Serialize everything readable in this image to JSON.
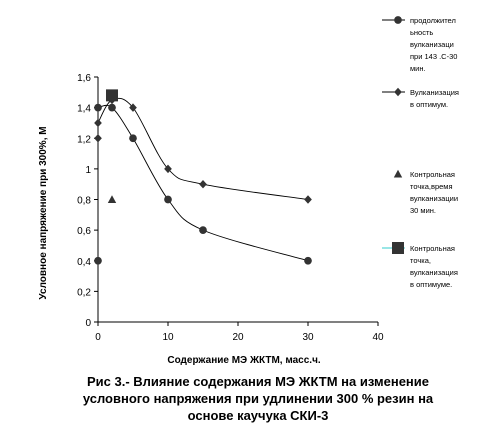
{
  "caption": {
    "line1": "Рис 3.- Влияние содержания МЭ ЖКТМ на изменение",
    "line2": "условного напряжения при удлинении 300 % резин на",
    "line3": "основе каучука СКИ-3"
  },
  "chart_data": {
    "type": "scatter",
    "title": "",
    "xlabel": "Содержание МЭ ЖКТМ, масс.ч.",
    "ylabel": "Условное напряжение при 300%, М",
    "xlim": [
      0,
      40
    ],
    "ylim": [
      0,
      1.6
    ],
    "x_ticks": [
      "0",
      "10",
      "20",
      "30",
      "40"
    ],
    "y_ticks": [
      "0",
      "0,2",
      "0,4",
      "0,6",
      "0,8",
      "1",
      "1,2",
      "1,4",
      "1,6"
    ],
    "grid": false,
    "legend_position": "right",
    "series": [
      {
        "name": "продолжительность вулканизации при 143 .С-30 мин.",
        "legend_lines": [
          "продолжител",
          "ьность",
          "вулканизаци",
          "при 143 .С-30",
          "мин."
        ],
        "marker": "circle",
        "color": "#333333",
        "points": [
          [
            0,
            0.4
          ],
          [
            0,
            1.4
          ],
          [
            2,
            1.4
          ],
          [
            5,
            1.2
          ],
          [
            10,
            0.8
          ],
          [
            15,
            0.6
          ],
          [
            30,
            0.4
          ]
        ]
      },
      {
        "name": "Вулканизация в оптимум.",
        "legend_lines": [
          "Вулканизация",
          "в оптимум."
        ],
        "marker": "diamond",
        "color": "#333333",
        "points": [
          [
            0,
            1.2
          ],
          [
            0,
            1.3
          ],
          [
            2,
            1.45
          ],
          [
            5,
            1.4
          ],
          [
            10,
            1.0
          ],
          [
            15,
            0.9
          ],
          [
            30,
            0.8
          ]
        ]
      },
      {
        "name": "Контрольная точка,время вулканизации 30 мин.",
        "legend_lines": [
          "Контрольная",
          "точка,время",
          "вулканизации",
          "30 мин."
        ],
        "marker": "triangle",
        "color": "#333333",
        "points": [
          [
            2,
            0.8
          ]
        ]
      },
      {
        "name": "Контрольная точка, вулканизация в оптимуме.",
        "legend_lines": [
          "Контрольная",
          "точка,",
          "вулканизация",
          "в оптимуме."
        ],
        "marker": "square",
        "color": "#333333",
        "line_color": "#33cccc",
        "points": [
          [
            2,
            1.48
          ]
        ]
      }
    ]
  }
}
